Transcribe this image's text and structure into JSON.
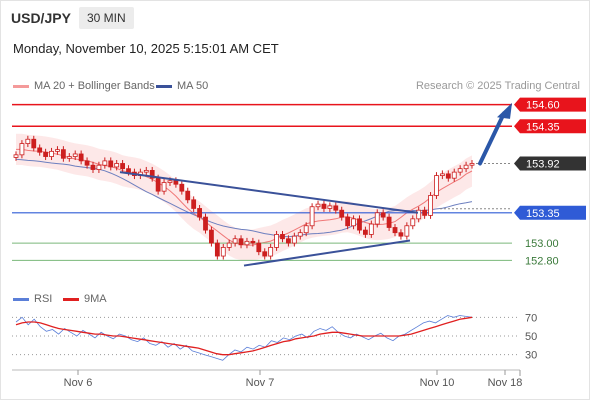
{
  "header": {
    "pair": "USD/JPY",
    "timeframe": "30 MIN",
    "datetime": "Monday, November 10, 2025 5:15:01 AM CET"
  },
  "legend": {
    "ma20": "MA 20 + Bollinger Bands",
    "ma50": "MA 50",
    "copyright": "Research © 2025 Trading Central"
  },
  "indicator_legend": {
    "rsi": "RSI",
    "ma9": "9MA"
  },
  "colors": {
    "resistance": "#e8141c",
    "support": "#2f5bd6",
    "minor_support": "#7ab87a",
    "candle": "#cc1f1f",
    "trendline": "#3a5199",
    "forecast_arrow": "#2b57a8",
    "bollinger_fill": "#fde2e2",
    "ma20": "#f07878",
    "ma50": "#6c7fbf",
    "rsi": "#5b7fd8",
    "rsi_ma": "#e02020",
    "current_badge": "#333333"
  },
  "chart_data": [
    {
      "type": "candlestick",
      "title": "",
      "x_labels": [
        "Nov 6",
        "Nov 7",
        "Nov 10",
        "Nov 18"
      ],
      "ylim": [
        152.55,
        154.7
      ],
      "levels": [
        {
          "label": "154.60",
          "value": 154.6,
          "kind": "resistance",
          "badge": "red"
        },
        {
          "label": "154.35",
          "value": 154.35,
          "kind": "resistance",
          "badge": "red"
        },
        {
          "label": "153.92",
          "value": 153.92,
          "kind": "current",
          "badge": "dark"
        },
        {
          "label": "153.35",
          "value": 153.35,
          "kind": "pivot",
          "badge": "blue"
        },
        {
          "label": "153.00",
          "value": 153.0,
          "kind": "support",
          "badge": "none"
        },
        {
          "label": "152.80",
          "value": 152.8,
          "kind": "support",
          "badge": "none"
        }
      ],
      "close_series": [
        154.02,
        154.15,
        154.2,
        154.1,
        154.05,
        154.0,
        154.06,
        154.08,
        153.98,
        154.0,
        154.03,
        153.95,
        153.9,
        153.85,
        153.9,
        153.95,
        153.88,
        153.92,
        153.86,
        153.82,
        153.78,
        153.82,
        153.84,
        153.75,
        153.6,
        153.7,
        153.72,
        153.68,
        153.6,
        153.5,
        153.4,
        153.3,
        153.15,
        153.0,
        152.85,
        152.95,
        153.0,
        153.05,
        152.98,
        153.02,
        153.0,
        152.9,
        152.85,
        152.95,
        153.1,
        153.05,
        153.0,
        153.08,
        153.12,
        153.2,
        153.42,
        153.45,
        153.4,
        153.43,
        153.38,
        153.3,
        153.2,
        153.28,
        153.15,
        153.1,
        153.22,
        153.35,
        153.3,
        153.18,
        153.12,
        153.08,
        153.2,
        153.28,
        153.38,
        153.32,
        153.55,
        153.78,
        153.8,
        153.75,
        153.82,
        153.86,
        153.9,
        153.92
      ],
      "indicators": {
        "ma20": "MA 20 + Bollinger Bands",
        "ma50": "MA 50"
      },
      "trendlines": "descending resistance from Nov 6 highs to Nov 10; rising support from Nov 7 lows",
      "forecast": "arrow pointing up from 153.92 toward 154.60"
    },
    {
      "type": "line",
      "title": "",
      "ylim": [
        20,
        80
      ],
      "y_ticks": [
        "70",
        "50",
        "30"
      ],
      "series": [
        {
          "name": "RSI",
          "values": [
            65,
            70,
            62,
            68,
            60,
            55,
            57,
            52,
            58,
            54,
            50,
            56,
            52,
            48,
            54,
            50,
            47,
            52,
            50,
            46,
            44,
            48,
            42,
            40,
            44,
            38,
            42,
            36,
            40,
            34,
            32,
            30,
            28,
            26,
            24,
            30,
            35,
            33,
            38,
            36,
            40,
            38,
            45,
            43,
            48,
            46,
            50,
            52,
            48,
            55,
            58,
            56,
            60,
            54,
            50,
            48,
            52,
            49,
            46,
            50,
            53,
            48,
            45,
            50,
            52,
            56,
            60,
            64,
            66,
            64,
            68,
            72,
            70,
            72,
            71,
            70
          ]
        },
        {
          "name": "9MA",
          "values": [
            62,
            64,
            65,
            65,
            64,
            62,
            60,
            58,
            57,
            56,
            55,
            54,
            53,
            52,
            52,
            51,
            50,
            50,
            49,
            48,
            47,
            46,
            45,
            44,
            43,
            42,
            41,
            40,
            39,
            38,
            37,
            35,
            33,
            31,
            30,
            30,
            31,
            32,
            33,
            34,
            36,
            38,
            40,
            42,
            44,
            45,
            47,
            48,
            49,
            50,
            52,
            53,
            54,
            54,
            53,
            52,
            51,
            50,
            50,
            50,
            50,
            50,
            50,
            50,
            51,
            52,
            54,
            56,
            58,
            60,
            62,
            64,
            66,
            68,
            69,
            70
          ]
        }
      ]
    }
  ]
}
